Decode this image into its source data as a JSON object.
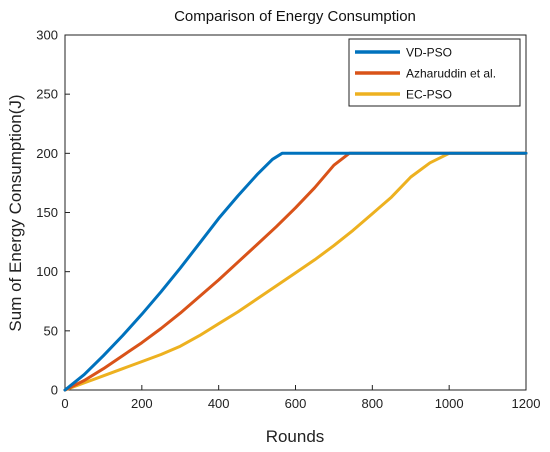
{
  "chart_data": {
    "type": "line",
    "title": "Comparison of Energy Consumption",
    "xlabel": "Rounds",
    "ylabel": "Sum of Energy Consumption(J)",
    "xlim": [
      0,
      1200
    ],
    "ylim": [
      0,
      300
    ],
    "xticks": [
      0,
      200,
      400,
      600,
      800,
      1000,
      1200
    ],
    "yticks": [
      0,
      50,
      100,
      150,
      200,
      250,
      300
    ],
    "grid": false,
    "legend_position": "top-right",
    "series": [
      {
        "name": "VD-PSO",
        "color": "#0072BD",
        "x": [
          0,
          50,
          100,
          150,
          200,
          250,
          300,
          350,
          400,
          450,
          500,
          540,
          565,
          600,
          800,
          1000,
          1200
        ],
        "y": [
          0,
          13,
          29,
          46,
          64,
          83,
          103,
          124,
          145,
          164,
          182,
          195,
          200,
          200,
          200,
          200,
          200
        ]
      },
      {
        "name": "Azharuddin et al.",
        "color": "#D95319",
        "x": [
          0,
          50,
          100,
          150,
          200,
          250,
          300,
          350,
          400,
          450,
          500,
          550,
          600,
          650,
          700,
          740,
          800,
          1000,
          1200
        ],
        "y": [
          0,
          8,
          18,
          29,
          40,
          52,
          65,
          79,
          93,
          108,
          123,
          138,
          154,
          171,
          190,
          200,
          200,
          200,
          200
        ]
      },
      {
        "name": "EC-PSO",
        "color": "#EDB120",
        "x": [
          0,
          50,
          100,
          150,
          200,
          250,
          300,
          350,
          400,
          450,
          500,
          550,
          600,
          650,
          700,
          750,
          800,
          850,
          900,
          950,
          1000,
          1100,
          1200
        ],
        "y": [
          0,
          6,
          12,
          18,
          24,
          30,
          37,
          46,
          56,
          66,
          77,
          88,
          99,
          110,
          122,
          135,
          149,
          163,
          180,
          192,
          200,
          200,
          200
        ]
      }
    ]
  }
}
